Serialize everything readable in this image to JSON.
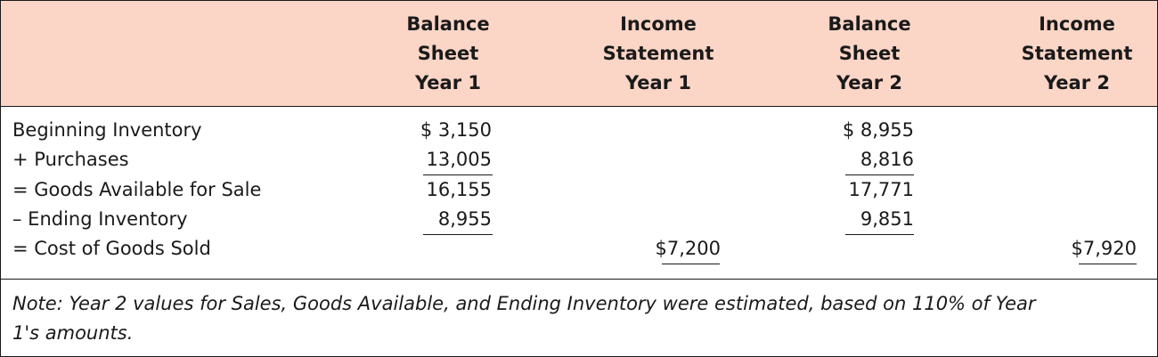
{
  "header": {
    "col1": [
      "Balance",
      "Sheet",
      "Year 1"
    ],
    "col2": [
      "Income",
      "Statement",
      "Year 1"
    ],
    "col3": [
      "Balance",
      "Sheet",
      "Year 2"
    ],
    "col4": [
      "Income",
      "Statement",
      "Year 2"
    ]
  },
  "rows": [
    {
      "label": "Beginning Inventory",
      "bs1": "$  3,150",
      "bs2": "$ 8,955"
    },
    {
      "label": " + Purchases",
      "bs1": "13,005",
      "bs2": "8,816"
    },
    {
      "label": " = Goods Available for Sale",
      "bs1": "16,155",
      "bs2": "17,771"
    },
    {
      "label": " – Ending Inventory",
      "bs1": "8,955",
      "bs2": "9,851"
    },
    {
      "label": " = Cost of Goods Sold",
      "is1_currency": "$",
      "is1_value": "7,200",
      "is2_currency": "$",
      "is2_value": "7,920"
    }
  ],
  "note": "Note: Year 2 values for Sales, Goods Available, and Ending Inventory were estimated, based on 110% of Year 1's amounts."
}
